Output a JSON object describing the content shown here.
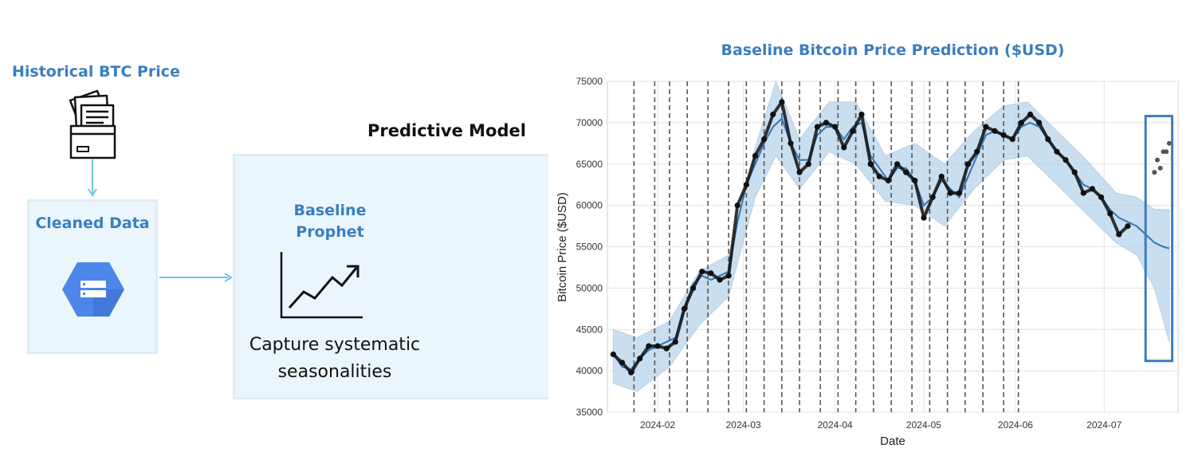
{
  "pipeline": {
    "source_title": "Historical BTC Price",
    "cleaned_title": "Cleaned Data",
    "model_label": "Predictive Model",
    "model_name": "Baseline Prophet",
    "model_name_line1": "Baseline",
    "model_name_line2": "Prophet",
    "model_desc_line1": "Capture systematic",
    "model_desc_line2": "seasonalities",
    "icons": [
      "files-folder-icon",
      "bigquery-db-icon",
      "trend-chart-icon",
      "arrow-down-icon",
      "arrow-right-icon"
    ]
  },
  "colors": {
    "accent": "#3a7ebf",
    "box_fill": "#ebf6fc",
    "box_border": "#dcedf8",
    "connector": "#6fc3e6",
    "forecast_line": "#3574b8",
    "forecast_band": "#b8d3ea",
    "actual_points": "#111111",
    "holdout_points": "#555555",
    "highlight_box": "#3a7ebf"
  },
  "chart_data": {
    "type": "line",
    "title": "Baseline Bitcoin Price Prediction ($USD)",
    "xlabel": "Date",
    "ylabel": "Bitcoin Price ($USD)",
    "xlim": [
      "2024-01-15",
      "2024-07-26"
    ],
    "ylim": [
      35000,
      75000
    ],
    "yticks": [
      35000,
      40000,
      45000,
      50000,
      55000,
      60000,
      65000,
      70000,
      75000
    ],
    "xticks": [
      "2024-02-01",
      "2024-03-01",
      "2024-04-01",
      "2024-05-01",
      "2024-06-01",
      "2024-07-01"
    ],
    "xtick_labels": [
      "2024-02",
      "2024-03",
      "2024-04",
      "2024-05",
      "2024-06",
      "2024-07"
    ],
    "grid": true,
    "changepoints": [
      "2024-01-24",
      "2024-01-31",
      "2024-02-05",
      "2024-02-11",
      "2024-02-18",
      "2024-02-25",
      "2024-03-02",
      "2024-03-08",
      "2024-03-14",
      "2024-03-20",
      "2024-03-27",
      "2024-04-02",
      "2024-04-08",
      "2024-04-14",
      "2024-04-20",
      "2024-04-27",
      "2024-05-03",
      "2024-05-09",
      "2024-05-15",
      "2024-05-21",
      "2024-05-28",
      "2024-06-02"
    ],
    "series": [
      {
        "kind": "actual",
        "x": [
          "2024-01-17",
          "2024-01-20",
          "2024-01-23",
          "2024-01-26",
          "2024-01-29",
          "2024-02-01",
          "2024-02-04",
          "2024-02-07",
          "2024-02-10",
          "2024-02-13",
          "2024-02-16",
          "2024-02-19",
          "2024-02-22",
          "2024-02-25",
          "2024-02-28",
          "2024-03-02",
          "2024-03-05",
          "2024-03-08",
          "2024-03-11",
          "2024-03-14",
          "2024-03-17",
          "2024-03-20",
          "2024-03-23",
          "2024-03-26",
          "2024-03-29",
          "2024-04-01",
          "2024-04-04",
          "2024-04-07",
          "2024-04-10",
          "2024-04-13",
          "2024-04-16",
          "2024-04-19",
          "2024-04-22",
          "2024-04-25",
          "2024-04-28",
          "2024-05-01",
          "2024-05-04",
          "2024-05-07",
          "2024-05-10",
          "2024-05-13",
          "2024-05-16",
          "2024-05-19",
          "2024-05-22",
          "2024-05-25",
          "2024-05-28",
          "2024-05-31",
          "2024-06-03",
          "2024-06-06",
          "2024-06-09",
          "2024-06-12",
          "2024-06-15",
          "2024-06-18",
          "2024-06-21",
          "2024-06-24",
          "2024-06-27",
          "2024-06-30",
          "2024-07-03",
          "2024-07-06",
          "2024-07-09"
        ],
        "y": [
          42000,
          41000,
          39800,
          41500,
          43000,
          43000,
          42700,
          43500,
          47500,
          50000,
          52000,
          51800,
          51000,
          51500,
          60000,
          62500,
          66000,
          68000,
          71000,
          72500,
          67500,
          64000,
          65000,
          69500,
          70000,
          69500,
          67000,
          69000,
          71000,
          65000,
          63500,
          63000,
          65000,
          64000,
          63000,
          58500,
          61000,
          63500,
          61500,
          61500,
          65000,
          66500,
          69500,
          69000,
          68500,
          68000,
          70000,
          71000,
          70000,
          68000,
          66500,
          65500,
          64000,
          61500,
          62000,
          61000,
          59000,
          56500,
          57500
        ]
      },
      {
        "kind": "holdout",
        "x": [
          "2024-07-18",
          "2024-07-19",
          "2024-07-20",
          "2024-07-21",
          "2024-07-22",
          "2024-07-23"
        ],
        "y": [
          64000,
          65500,
          64500,
          66500,
          66500,
          67500
        ]
      },
      {
        "kind": "forecast",
        "x": [
          "2024-01-17",
          "2024-01-20",
          "2024-01-23",
          "2024-01-26",
          "2024-01-29",
          "2024-02-01",
          "2024-02-04",
          "2024-02-07",
          "2024-02-10",
          "2024-02-13",
          "2024-02-16",
          "2024-02-19",
          "2024-02-22",
          "2024-02-25",
          "2024-02-28",
          "2024-03-02",
          "2024-03-05",
          "2024-03-08",
          "2024-03-11",
          "2024-03-14",
          "2024-03-17",
          "2024-03-20",
          "2024-03-23",
          "2024-03-26",
          "2024-03-29",
          "2024-04-01",
          "2024-04-04",
          "2024-04-07",
          "2024-04-10",
          "2024-04-13",
          "2024-04-16",
          "2024-04-19",
          "2024-04-22",
          "2024-04-25",
          "2024-04-28",
          "2024-05-01",
          "2024-05-04",
          "2024-05-07",
          "2024-05-10",
          "2024-05-13",
          "2024-05-16",
          "2024-05-19",
          "2024-05-22",
          "2024-05-25",
          "2024-05-28",
          "2024-05-31",
          "2024-06-03",
          "2024-06-06",
          "2024-06-09",
          "2024-06-12",
          "2024-06-15",
          "2024-06-18",
          "2024-06-21",
          "2024-06-24",
          "2024-06-27",
          "2024-06-30",
          "2024-07-03",
          "2024-07-06",
          "2024-07-09",
          "2024-07-12",
          "2024-07-15",
          "2024-07-18",
          "2024-07-21",
          "2024-07-23"
        ],
        "y": [
          42000,
          40500,
          40200,
          41500,
          42500,
          43000,
          43500,
          44000,
          47500,
          50500,
          51500,
          51000,
          51500,
          52000,
          58000,
          62500,
          65000,
          67500,
          69500,
          70500,
          67500,
          65500,
          65500,
          68500,
          69500,
          69500,
          68000,
          69500,
          70000,
          66000,
          64500,
          63000,
          64500,
          64500,
          63000,
          60000,
          61000,
          63000,
          62000,
          61000,
          63500,
          66000,
          68500,
          69000,
          68500,
          68000,
          69500,
          70000,
          69500,
          68000,
          66500,
          65500,
          64000,
          62500,
          62000,
          61000,
          59500,
          58500,
          58000,
          57500,
          56500,
          55500,
          55000,
          54800
        ]
      },
      {
        "kind": "uncertainty_upper",
        "x": [
          "2024-01-17",
          "2024-01-25",
          "2024-02-05",
          "2024-02-15",
          "2024-02-25",
          "2024-03-05",
          "2024-03-12",
          "2024-03-20",
          "2024-03-30",
          "2024-04-08",
          "2024-04-18",
          "2024-04-28",
          "2024-05-08",
          "2024-05-18",
          "2024-05-28",
          "2024-06-05",
          "2024-06-15",
          "2024-06-25",
          "2024-07-05",
          "2024-07-12",
          "2024-07-18",
          "2024-07-23"
        ],
        "y": [
          45000,
          44000,
          46000,
          52000,
          54000,
          67000,
          75000,
          68000,
          72500,
          72500,
          66000,
          67500,
          65000,
          69000,
          72000,
          72500,
          69000,
          65500,
          61500,
          61000,
          59500,
          59500
        ]
      },
      {
        "kind": "uncertainty_lower",
        "x": [
          "2024-01-17",
          "2024-01-25",
          "2024-02-05",
          "2024-02-15",
          "2024-02-25",
          "2024-03-05",
          "2024-03-12",
          "2024-03-20",
          "2024-03-30",
          "2024-04-08",
          "2024-04-18",
          "2024-04-28",
          "2024-05-08",
          "2024-05-18",
          "2024-05-28",
          "2024-06-05",
          "2024-06-15",
          "2024-06-25",
          "2024-07-05",
          "2024-07-12",
          "2024-07-18",
          "2024-07-23"
        ],
        "y": [
          38500,
          37500,
          40500,
          45500,
          49000,
          61000,
          66000,
          62000,
          66500,
          65000,
          60500,
          60000,
          57500,
          62000,
          65500,
          66000,
          62500,
          59000,
          55500,
          54000,
          50000,
          43500
        ]
      }
    ],
    "annotations": [
      {
        "kind": "highlight_box",
        "x": [
          "2024-07-15",
          "2024-07-24"
        ],
        "y": [
          41200,
          70800
        ]
      }
    ]
  }
}
